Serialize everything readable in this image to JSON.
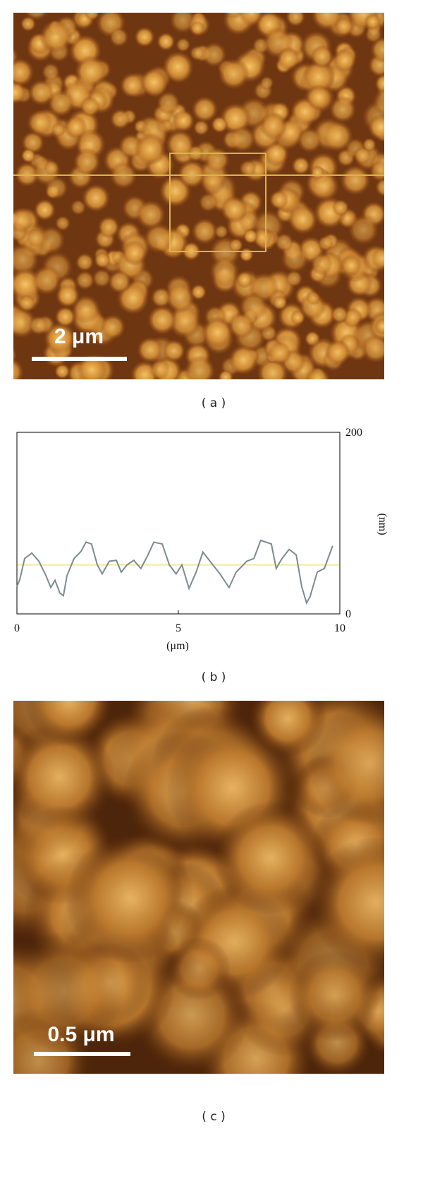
{
  "panel_a": {
    "scale_bar": "2 μm",
    "caption": "( a )"
  },
  "chart_data": {
    "type": "line",
    "caption": "( b )",
    "x_label": "(μm)",
    "y_label": "(nm)",
    "x": [
      0,
      0.09,
      0.24,
      0.46,
      0.68,
      0.9,
      1.05,
      1.18,
      1.33,
      1.44,
      1.55,
      1.77,
      1.99,
      2.14,
      2.31,
      2.49,
      2.64,
      2.86,
      3.08,
      3.23,
      3.41,
      3.62,
      3.84,
      4.06,
      4.24,
      4.5,
      4.72,
      4.93,
      5.11,
      5.33,
      5.55,
      5.76,
      5.98,
      6.29,
      6.57,
      6.79,
      7.12,
      7.34,
      7.55,
      7.88,
      8.03,
      8.21,
      8.43,
      8.65,
      8.82,
      8.97,
      9.08,
      9.3,
      9.52,
      9.78
    ],
    "series": [
      {
        "color": "#7d8b8e",
        "values": [
          30,
          38,
          61,
          67,
          58,
          42,
          29,
          37,
          23,
          20,
          42,
          61,
          69,
          79,
          77,
          54,
          44,
          58,
          59,
          46,
          54,
          59,
          50,
          65,
          79,
          77,
          54,
          44,
          54,
          28,
          46,
          68,
          58,
          44,
          29,
          46,
          58,
          61,
          81,
          77,
          50,
          61,
          71,
          65,
          30,
          12,
          19,
          46,
          50,
          75
        ]
      }
    ],
    "reference_line": 54,
    "reference_color": "#f2ea9a",
    "xlim": [
      0,
      10
    ],
    "xticks": [
      0,
      5,
      10
    ],
    "ylim": [
      0,
      200
    ],
    "yticks": [
      0,
      200
    ]
  },
  "panel_c": {
    "scale_bar": "0.5 μm",
    "caption": "( c )"
  }
}
